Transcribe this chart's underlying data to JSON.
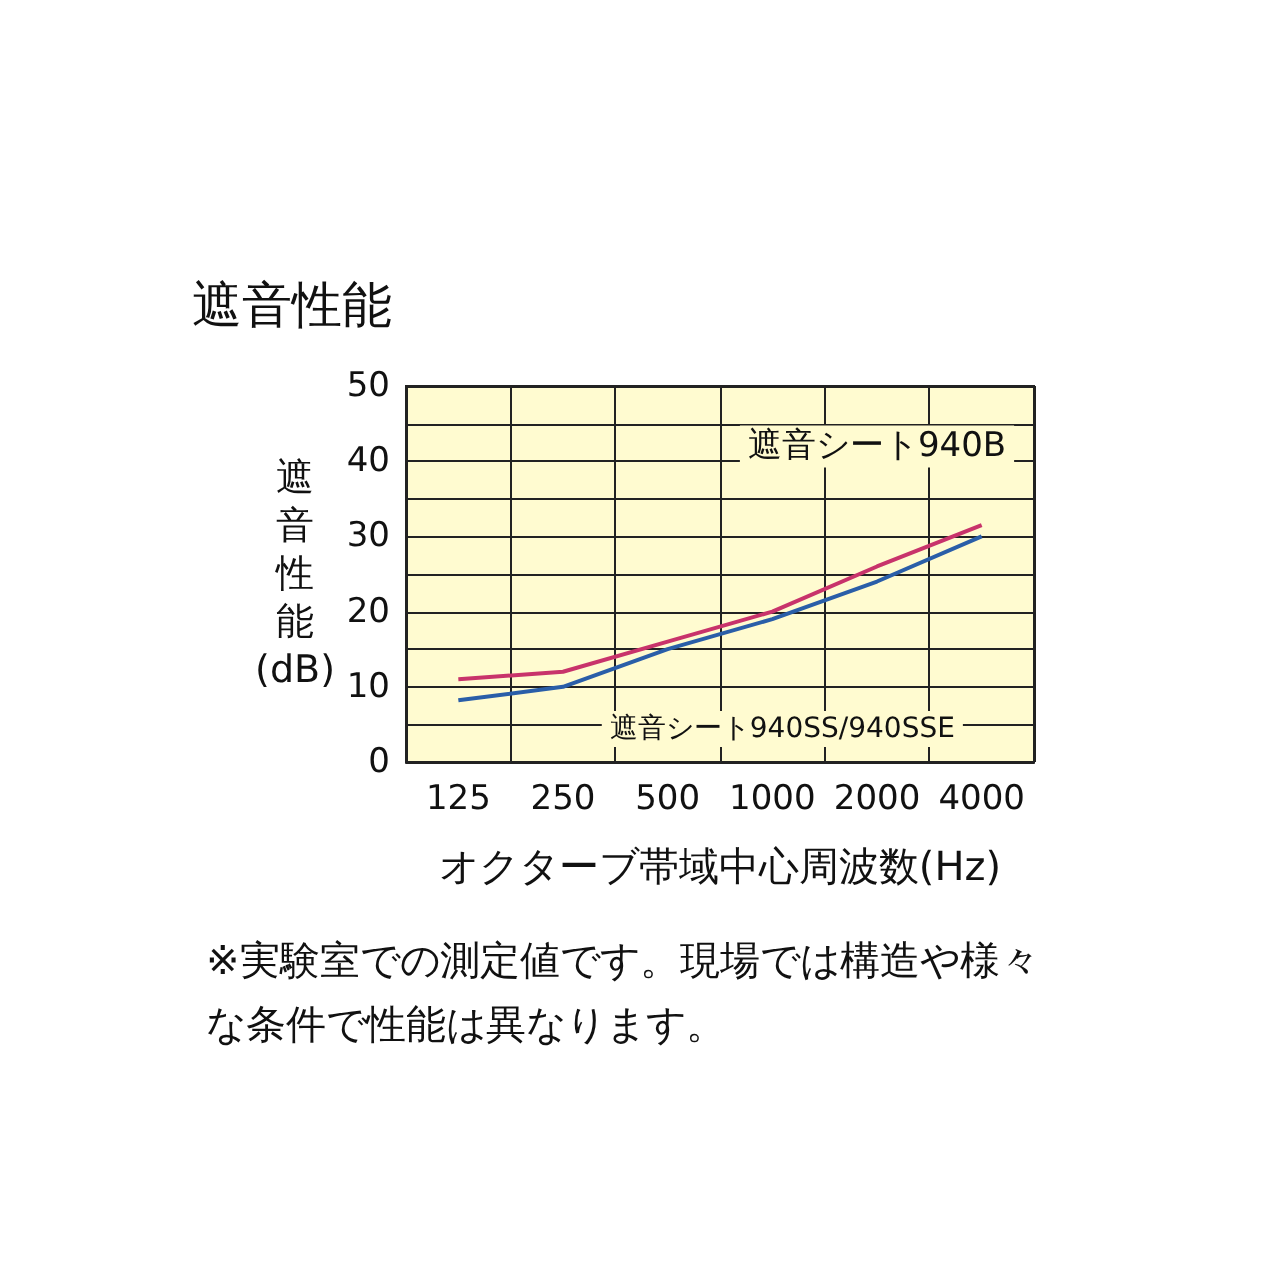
{
  "chart_data": {
    "type": "line",
    "title": "遮音性能",
    "xlabel": "オクターブ帯域中心周波数(Hz)",
    "ylabel": "遮音性能(dB)",
    "categories": [
      "125",
      "250",
      "500",
      "1000",
      "2000",
      "4000"
    ],
    "series": [
      {
        "name": "遮音シート940B",
        "color": "#c8336b",
        "values": [
          11,
          12,
          16,
          20,
          26,
          31.5
        ]
      },
      {
        "name": "遮音シート940SS/940SSE",
        "color": "#2a5ea8",
        "values": [
          8.2,
          10,
          15,
          19,
          24,
          30
        ]
      }
    ],
    "ylim": [
      0,
      50
    ],
    "yticks": [
      0,
      {
        "value": 5,
        "label": null
      },
      10,
      {
        "value": 15,
        "label": null
      },
      20,
      {
        "value": 25,
        "label": null
      },
      30,
      {
        "value": 35,
        "label": null
      },
      40,
      {
        "value": 45,
        "label": null
      },
      50
    ],
    "grid": true,
    "legend": false,
    "marker": "none",
    "line_style": "solid",
    "annotations": [
      "※実験室での測定値です。現場では構造や様々な条件で性能は異なります。"
    ]
  }
}
